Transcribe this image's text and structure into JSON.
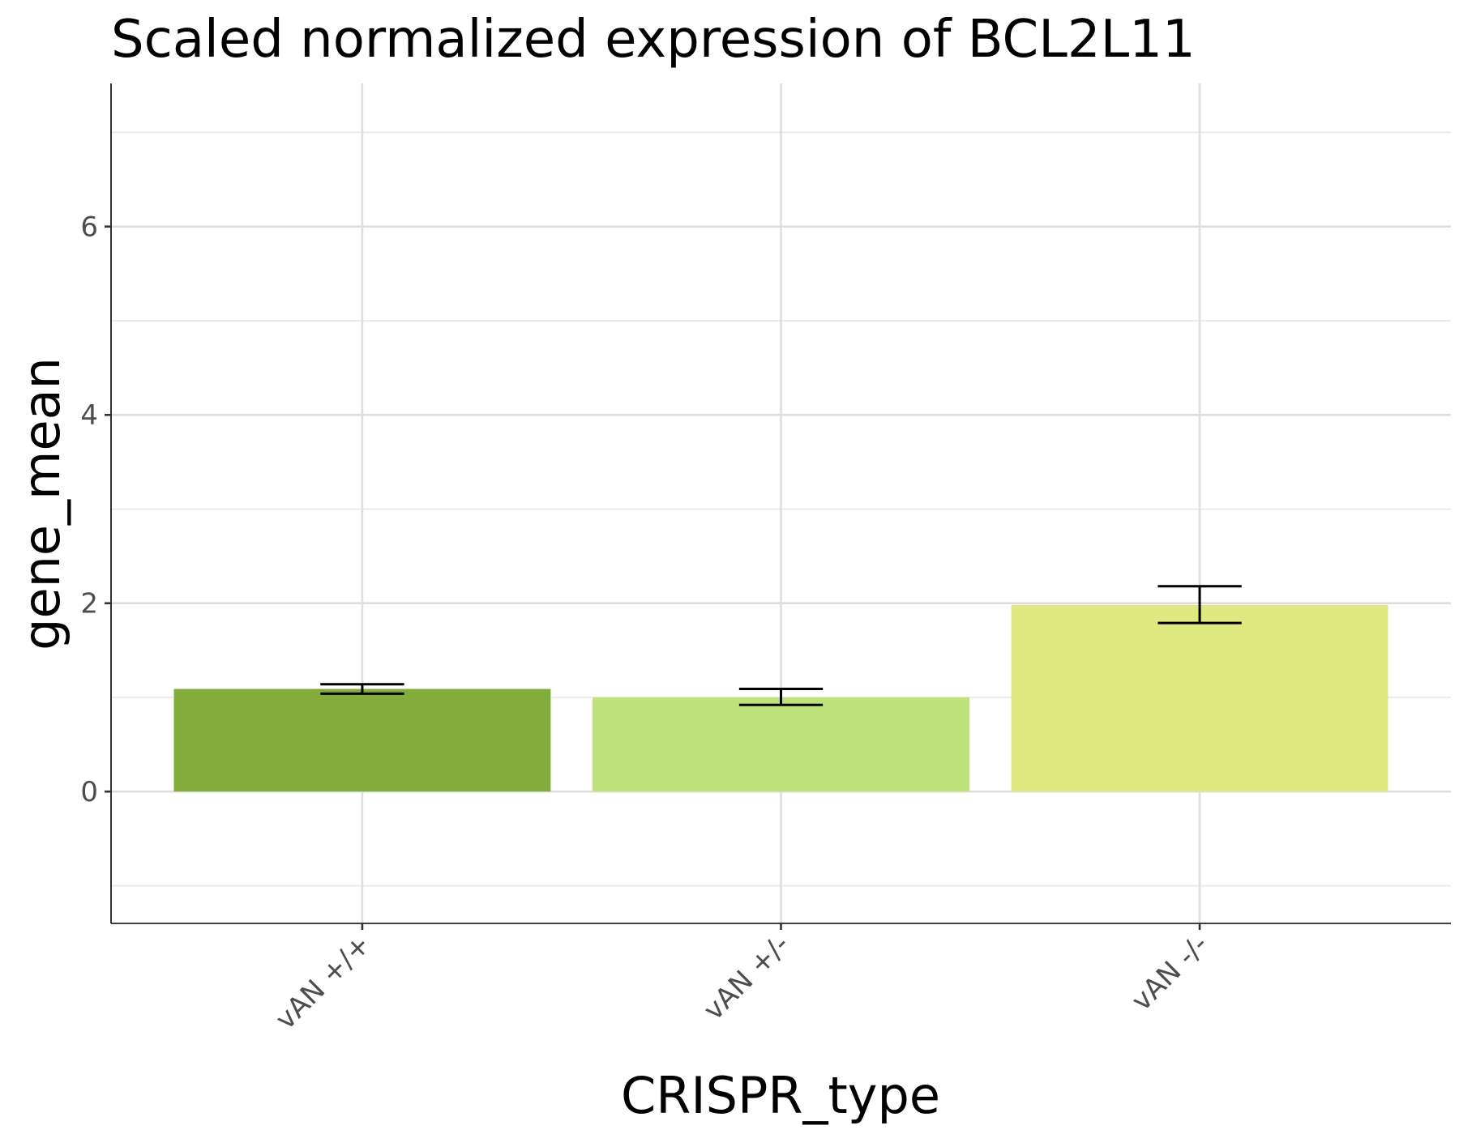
{
  "chart_data": {
    "type": "bar",
    "title": "Scaled normalized expression of BCL2L11",
    "xlabel": "CRISPR_type",
    "ylabel": "gene_mean",
    "categories": [
      "vAN +/+",
      "vAN +/-",
      "vAN -/-"
    ],
    "values": [
      1.09,
      1.0,
      1.98
    ],
    "error_low": [
      1.04,
      0.92,
      1.79
    ],
    "error_high": [
      1.14,
      1.09,
      2.18
    ],
    "colors": [
      "#82ad3c",
      "#bbe37a",
      "#dfe982"
    ],
    "ylim": [
      -1.4,
      7.52
    ],
    "yticks": [
      0,
      2,
      4,
      6
    ],
    "y_minor_ticks": [
      -1,
      1,
      3,
      5,
      7
    ],
    "grid": true,
    "legend": "none"
  }
}
